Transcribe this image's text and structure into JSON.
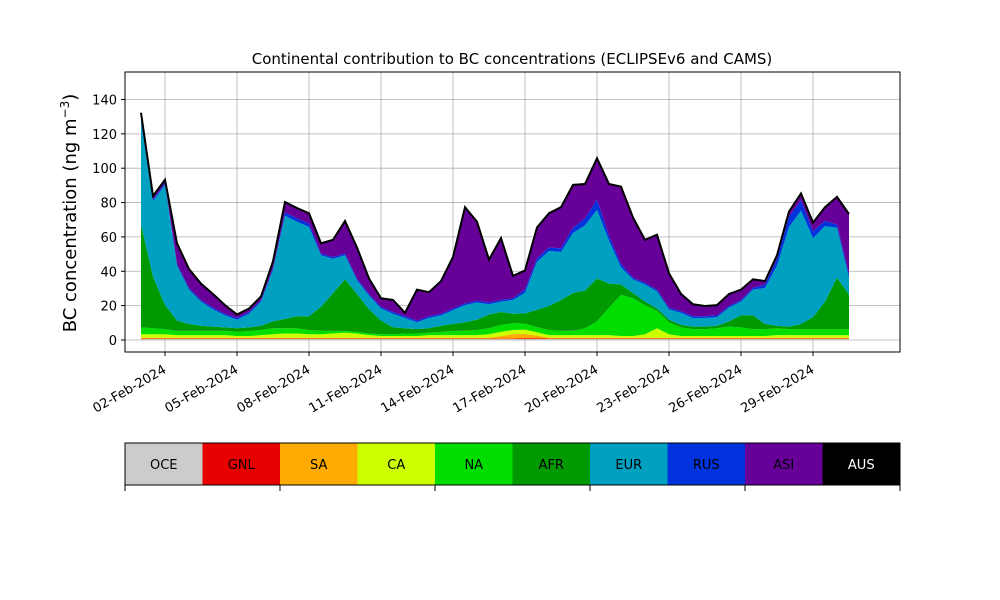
{
  "chart_data": {
    "type": "area",
    "title": "Continental contribution to BC concentrations (ECLIPSEv6 and CAMS)",
    "ylabel": "BC concentration (ng m",
    "ylabel_sup": "−3",
    "ylabel_close": ")",
    "xlabel": "",
    "ylim": [
      -7,
      156
    ],
    "yticks": [
      0,
      20,
      40,
      60,
      80,
      100,
      120,
      140
    ],
    "xlim": [
      "2024-01-31T08:00",
      "2024-03-03T15:00"
    ],
    "xticks": [
      {
        "date": "2024-02-02",
        "label": "02-Feb-2024"
      },
      {
        "date": "2024-02-05",
        "label": "05-Feb-2024"
      },
      {
        "date": "2024-02-08",
        "label": "08-Feb-2024"
      },
      {
        "date": "2024-02-11",
        "label": "11-Feb-2024"
      },
      {
        "date": "2024-02-14",
        "label": "14-Feb-2024"
      },
      {
        "date": "2024-02-17",
        "label": "17-Feb-2024"
      },
      {
        "date": "2024-02-20",
        "label": "20-Feb-2024"
      },
      {
        "date": "2024-02-23",
        "label": "23-Feb-2024"
      },
      {
        "date": "2024-02-26",
        "label": "26-Feb-2024"
      },
      {
        "date": "2024-02-29",
        "label": "29-Feb-2024"
      }
    ],
    "grid": true,
    "stacked": true,
    "x": [
      "2024-02-01T00:00",
      "2024-02-01T12:00",
      "2024-02-02T00:00",
      "2024-02-02T12:00",
      "2024-02-03T00:00",
      "2024-02-03T12:00",
      "2024-02-04T00:00",
      "2024-02-04T12:00",
      "2024-02-05T00:00",
      "2024-02-05T12:00",
      "2024-02-06T00:00",
      "2024-02-06T12:00",
      "2024-02-07T00:00",
      "2024-02-07T12:00",
      "2024-02-08T00:00",
      "2024-02-08T12:00",
      "2024-02-09T00:00",
      "2024-02-09T12:00",
      "2024-02-10T00:00",
      "2024-02-10T12:00",
      "2024-02-11T00:00",
      "2024-02-11T12:00",
      "2024-02-12T00:00",
      "2024-02-12T12:00",
      "2024-02-13T00:00",
      "2024-02-13T12:00",
      "2024-02-14T00:00",
      "2024-02-14T12:00",
      "2024-02-15T00:00",
      "2024-02-15T12:00",
      "2024-02-16T00:00",
      "2024-02-16T12:00",
      "2024-02-17T00:00",
      "2024-02-17T12:00",
      "2024-02-18T00:00",
      "2024-02-18T12:00",
      "2024-02-19T00:00",
      "2024-02-19T12:00",
      "2024-02-20T00:00",
      "2024-02-20T12:00",
      "2024-02-21T00:00",
      "2024-02-21T12:00",
      "2024-02-22T00:00",
      "2024-02-22T12:00",
      "2024-02-23T00:00",
      "2024-02-23T12:00",
      "2024-02-24T00:00",
      "2024-02-24T12:00",
      "2024-02-25T00:00",
      "2024-02-25T12:00",
      "2024-02-26T00:00",
      "2024-02-26T12:00",
      "2024-02-27T00:00",
      "2024-02-27T12:00",
      "2024-02-28T00:00",
      "2024-02-28T12:00",
      "2024-02-29T00:00",
      "2024-02-29T12:00",
      "2024-03-01T00:00",
      "2024-03-01T12:00"
    ],
    "series": [
      {
        "name": "OCE",
        "color": "#cccccc",
        "values": [
          0.5,
          0.5,
          0.5,
          0.5,
          0.5,
          0.5,
          0.5,
          0.5,
          0.5,
          0.5,
          0.5,
          0.5,
          0.5,
          0.5,
          0.5,
          0.5,
          0.5,
          0.5,
          0.5,
          0.5,
          0.5,
          0.5,
          0.5,
          0.5,
          0.5,
          0.5,
          0.5,
          0.5,
          0.5,
          0.5,
          0.5,
          0.5,
          0.5,
          0.5,
          0.5,
          0.5,
          0.5,
          0.5,
          0.5,
          0.5,
          0.5,
          0.5,
          0.5,
          0.5,
          0.5,
          0.5,
          0.5,
          0.5,
          0.5,
          0.5,
          0.5,
          0.5,
          0.5,
          0.5,
          0.5,
          0.5,
          0.5,
          0.5,
          0.5,
          0.5
        ]
      },
      {
        "name": "GNL",
        "color": "#e60000",
        "values": [
          0.3,
          0.3,
          0.3,
          0.3,
          0.3,
          0.3,
          0.3,
          0.3,
          0.3,
          0.3,
          0.3,
          0.3,
          0.3,
          0.3,
          0.3,
          0.3,
          0.3,
          0.3,
          0.3,
          0.3,
          0.3,
          0.3,
          0.3,
          0.3,
          0.3,
          0.3,
          0.3,
          0.3,
          0.3,
          0.3,
          0.3,
          0.3,
          0.5,
          0.5,
          0.3,
          0.3,
          0.3,
          0.3,
          0.3,
          0.3,
          0.3,
          0.3,
          0.3,
          0.3,
          0.3,
          0.3,
          0.3,
          0.3,
          0.3,
          0.3,
          0.3,
          0.3,
          0.3,
          0.3,
          0.3,
          0.3,
          0.3,
          0.3,
          0.3,
          0.3
        ]
      },
      {
        "name": "SA",
        "color": "#ffaa00",
        "values": [
          0.5,
          0.5,
          0.5,
          0.5,
          0.5,
          0.5,
          0.5,
          0.5,
          0.5,
          0.5,
          0.5,
          0.5,
          0.5,
          0.5,
          0.5,
          0.5,
          0.5,
          0.5,
          0.5,
          0.5,
          0.5,
          0.5,
          0.5,
          0.5,
          0.5,
          0.5,
          0.5,
          0.5,
          0.5,
          0.5,
          1.5,
          2.5,
          2.5,
          1.5,
          0.5,
          0.5,
          0.5,
          0.5,
          0.5,
          0.5,
          0.5,
          0.5,
          0.5,
          0.5,
          0.5,
          0.5,
          0.5,
          0.5,
          0.5,
          0.5,
          0.5,
          0.5,
          0.5,
          0.5,
          0.5,
          0.5,
          0.5,
          0.5,
          0.5,
          0.5
        ]
      },
      {
        "name": "CA",
        "color": "#ccff00",
        "values": [
          2.0,
          2.0,
          2.0,
          1.5,
          1.5,
          1.5,
          1.5,
          1.5,
          1.0,
          1.0,
          1.5,
          2.0,
          2.5,
          2.5,
          2.0,
          2.0,
          2.5,
          3.0,
          2.5,
          1.5,
          1.0,
          1.0,
          1.0,
          1.0,
          1.5,
          1.5,
          1.5,
          1.5,
          1.5,
          2.0,
          2.5,
          2.5,
          2.5,
          2.0,
          1.5,
          1.5,
          1.5,
          1.5,
          1.5,
          1.5,
          1.0,
          1.0,
          2.0,
          5.5,
          2.0,
          1.0,
          1.0,
          1.0,
          1.0,
          1.0,
          1.0,
          1.0,
          1.0,
          1.5,
          1.5,
          1.5,
          1.5,
          1.5,
          1.5,
          1.5
        ]
      },
      {
        "name": "NA",
        "color": "#00dd00",
        "values": [
          4.0,
          3.5,
          3.0,
          2.5,
          2.5,
          2.5,
          2.5,
          2.5,
          2.5,
          3.0,
          3.0,
          3.5,
          3.0,
          3.0,
          2.5,
          2.0,
          1.5,
          1.0,
          1.0,
          1.0,
          1.0,
          1.0,
          1.5,
          1.5,
          1.5,
          2.0,
          2.5,
          2.5,
          3.0,
          3.5,
          4.0,
          4.0,
          3.5,
          3.0,
          3.0,
          2.5,
          2.5,
          4.0,
          8.0,
          16.0,
          24.0,
          22.0,
          17.0,
          10.0,
          7.0,
          5.0,
          4.0,
          4.0,
          4.5,
          5.5,
          5.0,
          4.0,
          4.0,
          4.0,
          3.5,
          3.5,
          3.5,
          3.5,
          3.5,
          3.5
        ]
      },
      {
        "name": "AFR",
        "color": "#009900",
        "values": [
          60.0,
          30.0,
          14.0,
          6.0,
          4.0,
          3.0,
          2.5,
          2.0,
          2.0,
          2.0,
          2.5,
          4.0,
          5.5,
          7.0,
          8.0,
          14.0,
          22.0,
          30.0,
          22.0,
          14.0,
          8.0,
          4.0,
          3.0,
          2.5,
          2.5,
          3.5,
          4.0,
          5.0,
          6.0,
          8.0,
          7.5,
          5.5,
          6.0,
          10.0,
          14.0,
          18.0,
          22.0,
          22.0,
          25.0,
          14.0,
          6.0,
          3.0,
          2.0,
          1.5,
          1.5,
          1.5,
          1.5,
          1.5,
          1.5,
          3.0,
          7.0,
          8.0,
          3.0,
          1.5,
          1.5,
          3.0,
          7.0,
          16.0,
          30.0,
          20.0
        ]
      },
      {
        "name": "EUR",
        "color": "#00a0c0",
        "values": [
          60.0,
          44.0,
          70.0,
          32.0,
          20.0,
          14.0,
          10.0,
          7.0,
          5.0,
          8.0,
          14.0,
          30.0,
          60.0,
          55.0,
          52.0,
          30.0,
          20.0,
          14.0,
          8.0,
          8.0,
          7.0,
          8.0,
          6.0,
          4.0,
          6.0,
          6.0,
          8.0,
          10.0,
          10.0,
          6.0,
          6.0,
          8.0,
          12.0,
          28.0,
          32.0,
          28.0,
          35.0,
          38.0,
          40.0,
          25.0,
          10.0,
          8.0,
          10.0,
          10.0,
          6.0,
          7.0,
          5.0,
          5.0,
          5.0,
          8.0,
          8.0,
          15.0,
          21.0,
          35.0,
          58.0,
          66.0,
          46.0,
          44.0,
          29.0,
          10.0
        ]
      },
      {
        "name": "RUS",
        "color": "#0033dd",
        "values": [
          2.0,
          1.0,
          1.0,
          1.0,
          1.0,
          1.0,
          1.0,
          1.0,
          1.0,
          1.0,
          1.0,
          1.0,
          2.0,
          2.0,
          2.0,
          1.0,
          1.0,
          1.0,
          1.0,
          1.0,
          1.0,
          1.0,
          1.0,
          1.0,
          1.0,
          1.0,
          1.0,
          1.0,
          1.0,
          1.0,
          1.0,
          1.0,
          2.0,
          2.0,
          2.0,
          2.0,
          3.0,
          4.0,
          6.0,
          3.0,
          2.0,
          1.0,
          1.0,
          1.0,
          1.0,
          1.0,
          1.0,
          1.0,
          1.0,
          1.0,
          1.0,
          1.0,
          2.0,
          4.0,
          6.0,
          6.0,
          4.0,
          3.0,
          2.0,
          2.0
        ]
      },
      {
        "name": "ASI",
        "color": "#660099",
        "values": [
          3.0,
          2.0,
          2.0,
          12.0,
          11.0,
          9.5,
          8.0,
          5.0,
          2.0,
          2.0,
          2.0,
          4.0,
          6.0,
          6.0,
          6.0,
          6.0,
          10.0,
          19.0,
          18.0,
          9.0,
          5.0,
          7.0,
          2.0,
          18.0,
          14.0,
          19.0,
          30.0,
          56.0,
          46.0,
          25.0,
          36.0,
          13.0,
          11.0,
          18.0,
          20.0,
          24.0,
          25.0,
          20.0,
          24.0,
          30.0,
          45.0,
          35.0,
          25.0,
          32.0,
          20.0,
          10.0,
          7.0,
          6.0,
          6.0,
          7.0,
          6.0,
          5.0,
          2.0,
          2.0,
          3.0,
          4.0,
          5.0,
          8.0,
          16.0,
          35.0
        ]
      },
      {
        "name": "AUS",
        "color": "#000000",
        "values": [
          0,
          0,
          0,
          0,
          0,
          0,
          0,
          0,
          0,
          0,
          0,
          0,
          0,
          0,
          0,
          0,
          0,
          0,
          0,
          0,
          0,
          0,
          0,
          0,
          0,
          0,
          0,
          0,
          0,
          0,
          0,
          0,
          0,
          0,
          0,
          0,
          0,
          0,
          0,
          0,
          0,
          0,
          0,
          0,
          0,
          0,
          0,
          0,
          0,
          0,
          0,
          0,
          0,
          0,
          0,
          0,
          0,
          0,
          0,
          0
        ]
      }
    ],
    "legend": {
      "placement": "bottom",
      "items": [
        {
          "label": "OCE",
          "color": "#cccccc",
          "text_color": "#000000"
        },
        {
          "label": "GNL",
          "color": "#e60000",
          "text_color": "#000000"
        },
        {
          "label": "SA",
          "color": "#ffaa00",
          "text_color": "#000000"
        },
        {
          "label": "CA",
          "color": "#ccff00",
          "text_color": "#000000"
        },
        {
          "label": "NA",
          "color": "#00dd00",
          "text_color": "#000000"
        },
        {
          "label": "AFR",
          "color": "#009900",
          "text_color": "#000000"
        },
        {
          "label": "EUR",
          "color": "#00a0c0",
          "text_color": "#000000"
        },
        {
          "label": "RUS",
          "color": "#0033dd",
          "text_color": "#000000"
        },
        {
          "label": "ASI",
          "color": "#660099",
          "text_color": "#000000"
        },
        {
          "label": "AUS",
          "color": "#000000",
          "text_color": "#ffffff"
        }
      ]
    }
  }
}
